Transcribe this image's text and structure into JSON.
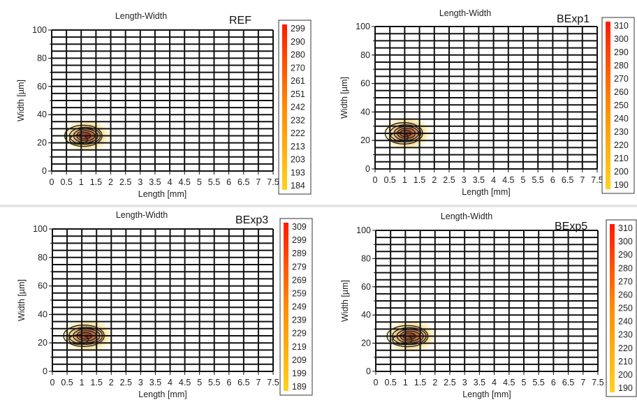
{
  "chart_data": [
    {
      "type": "contour",
      "title": "Length-Width",
      "tag": "REF",
      "xlabel": "Length [mm]",
      "ylabel": "Width [µm]",
      "xlim": [
        0,
        7.5
      ],
      "ylim": [
        0,
        100
      ],
      "x_ticks": [
        "0",
        "0.5",
        "1",
        "1.5",
        "2",
        "2.5",
        "3",
        "3.5",
        "4",
        "4.5",
        "5",
        "5.5",
        "6",
        "6.5",
        "7",
        "7.5"
      ],
      "y_ticks": [
        "0",
        "20",
        "40",
        "60",
        "80",
        "100"
      ],
      "grid": true,
      "colorbar": [
        "299",
        "290",
        "280",
        "270",
        "261",
        "251",
        "242",
        "232",
        "222",
        "213",
        "203",
        "193",
        "184"
      ],
      "hotspot": {
        "x": 1.1,
        "y": 25,
        "x_spread": 0.55,
        "y_spread": 6
      }
    },
    {
      "type": "contour",
      "title": "Length-Width",
      "tag": "BExp1",
      "xlabel": "Length [mm]",
      "ylabel": "Width [µm]",
      "xlim": [
        0,
        7.5
      ],
      "ylim": [
        0,
        100
      ],
      "x_ticks": [
        "0",
        "0.5",
        "1",
        "1.5",
        "2",
        "2.5",
        "3",
        "3.5",
        "4",
        "4.5",
        "5",
        "5.5",
        "6",
        "6.5",
        "7",
        "7.5"
      ],
      "y_ticks": [
        "0",
        "20",
        "40",
        "60",
        "80",
        "100"
      ],
      "grid": true,
      "colorbar": [
        "310",
        "300",
        "290",
        "280",
        "270",
        "260",
        "250",
        "240",
        "230",
        "220",
        "210",
        "200",
        "190"
      ],
      "hotspot": {
        "x": 1.0,
        "y": 25,
        "x_spread": 0.55,
        "y_spread": 6
      }
    },
    {
      "type": "contour",
      "title": "Length-Width",
      "tag": "BExp3",
      "xlabel": "Length [mm]",
      "ylabel": "Width [µm]",
      "xlim": [
        0,
        7.5
      ],
      "ylim": [
        0,
        100
      ],
      "x_ticks": [
        "0",
        "0.5",
        "1",
        "1.5",
        "2",
        "2.5",
        "3",
        "3.5",
        "4",
        "4.5",
        "5",
        "5.5",
        "6",
        "6.5",
        "7",
        "7.5"
      ],
      "y_ticks": [
        "0",
        "20",
        "40",
        "60",
        "80",
        "100"
      ],
      "grid": true,
      "colorbar": [
        "309",
        "299",
        "289",
        "279",
        "269",
        "259",
        "249",
        "239",
        "229",
        "219",
        "209",
        "199",
        "189"
      ],
      "hotspot": {
        "x": 1.1,
        "y": 25,
        "x_spread": 0.6,
        "y_spread": 6
      }
    },
    {
      "type": "contour",
      "title": "Length-Width",
      "tag": "BExp5",
      "xlabel": "Length [mm]",
      "ylabel": "Width [µm]",
      "xlim": [
        0,
        7.5
      ],
      "ylim": [
        0,
        100
      ],
      "x_ticks": [
        "0",
        "0.5",
        "1",
        "1.5",
        "2",
        "2.5",
        "3",
        "3.5",
        "4",
        "4.5",
        "5",
        "5.5",
        "6",
        "6.5",
        "7",
        "7.5"
      ],
      "y_ticks": [
        "0",
        "20",
        "40",
        "60",
        "80",
        "100"
      ],
      "grid": true,
      "colorbar": [
        "310",
        "300",
        "290",
        "280",
        "270",
        "260",
        "250",
        "240",
        "230",
        "220",
        "210",
        "200",
        "190"
      ],
      "hotspot": {
        "x": 1.1,
        "y": 25,
        "x_spread": 0.6,
        "y_spread": 6
      }
    }
  ],
  "colors": {
    "gradient_top": "#ff1a00",
    "gradient_mid": "#ff8c00",
    "gradient_bottom": "#ffd21e",
    "grid": "#111111",
    "contour": "#1a1a1a"
  }
}
